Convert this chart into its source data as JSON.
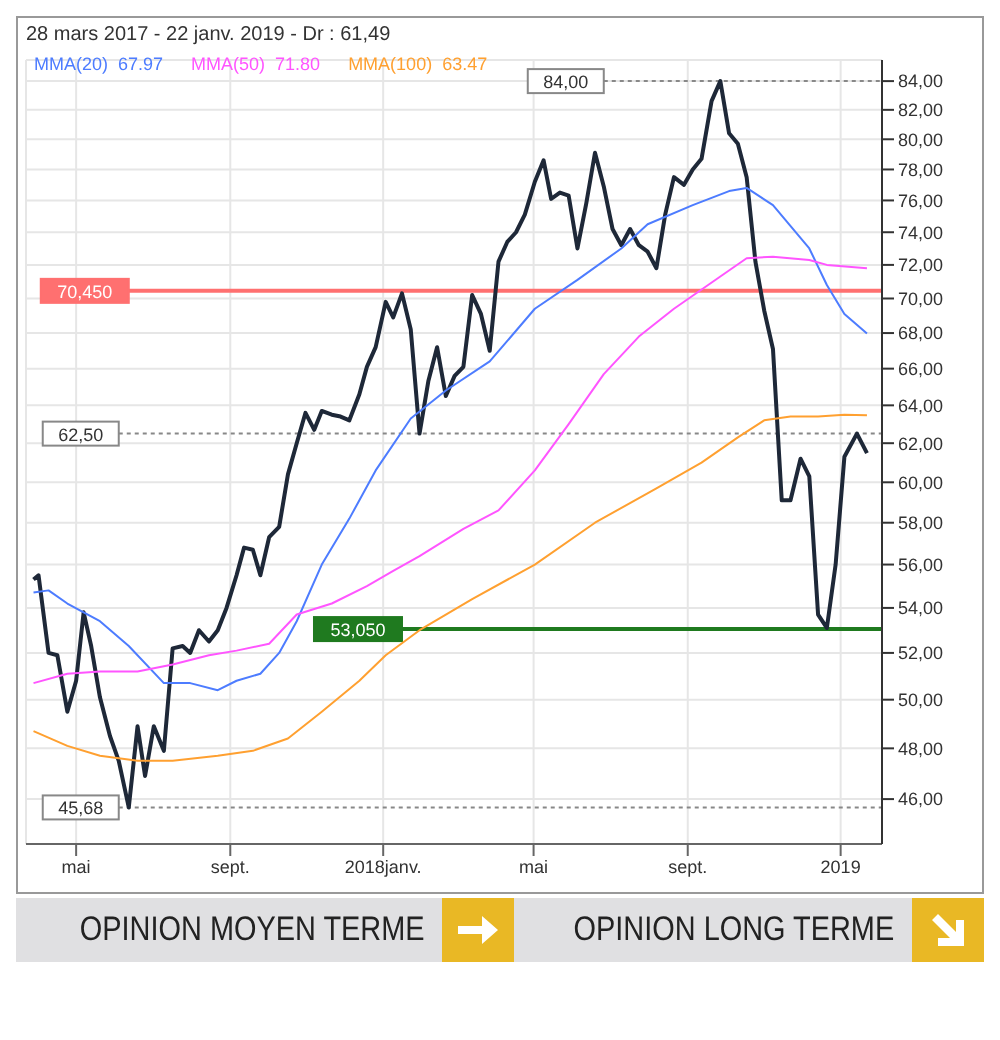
{
  "chart_data": {
    "type": "line",
    "title": "28 mars 2017 - 22 janv. 2019 - Dr : 61,49",
    "log": "y",
    "grid": true,
    "legend": "top left",
    "xlim": [
      "2017-03-22",
      "2019-02-03"
    ],
    "xticks": [
      {
        "value": "2017-05-01",
        "label": "mai"
      },
      {
        "value": "2017-09-01",
        "label": "sept."
      },
      {
        "value": "2018-01-01",
        "label": "2018janv."
      },
      {
        "value": "2018-05-01",
        "label": "mai"
      },
      {
        "value": "2018-09-01",
        "label": "sept."
      },
      {
        "value": "2019-01-01",
        "label": "2019"
      }
    ],
    "ylim": [
      44.3,
      85.5
    ],
    "yticks": [
      {
        "value": 46,
        "label": "46,00"
      },
      {
        "value": 48,
        "label": "48,00"
      },
      {
        "value": 50,
        "label": "50,00"
      },
      {
        "value": 52,
        "label": "52,00"
      },
      {
        "value": 54,
        "label": "54,00"
      },
      {
        "value": 56,
        "label": "56,00"
      },
      {
        "value": 58,
        "label": "58,00"
      },
      {
        "value": 60,
        "label": "60,00"
      },
      {
        "value": 62,
        "label": "62,00"
      },
      {
        "value": 64,
        "label": "64,00"
      },
      {
        "value": 66,
        "label": "66,00"
      },
      {
        "value": 68,
        "label": "68,00"
      },
      {
        "value": 70,
        "label": "70,00"
      },
      {
        "value": 72,
        "label": "72,00"
      },
      {
        "value": 74,
        "label": "74,00"
      },
      {
        "value": 76,
        "label": "76,00"
      },
      {
        "value": 78,
        "label": "78,00"
      },
      {
        "value": 80,
        "label": "80,00"
      },
      {
        "value": 82,
        "label": "82,00"
      },
      {
        "value": 84,
        "label": "84,00"
      }
    ],
    "series": [
      {
        "color": "#1e2838",
        "x": [
          "2017-03-28",
          "2017-04-01",
          "2017-04-09",
          "2017-04-16",
          "2017-04-24",
          "2017-05-01",
          "2017-05-07",
          "2017-05-13",
          "2017-05-20",
          "2017-05-28",
          "2017-06-04",
          "2017-06-12",
          "2017-06-19",
          "2017-06-25",
          "2017-07-02",
          "2017-07-10",
          "2017-07-17",
          "2017-07-25",
          "2017-07-31",
          "2017-08-07",
          "2017-08-15",
          "2017-08-22",
          "2017-08-29",
          "2017-09-06",
          "2017-09-12",
          "2017-09-19",
          "2017-09-25",
          "2017-10-02",
          "2017-10-10",
          "2017-10-17",
          "2017-10-24",
          "2017-10-31",
          "2017-11-07",
          "2017-11-13",
          "2017-11-21",
          "2017-11-28",
          "2017-12-05",
          "2017-12-13",
          "2017-12-19",
          "2017-12-26",
          "2018-01-03",
          "2018-01-09",
          "2018-01-16",
          "2018-01-23",
          "2018-01-30",
          "2018-02-06",
          "2018-02-13",
          "2018-02-20",
          "2018-02-27",
          "2018-03-06",
          "2018-03-13",
          "2018-03-20",
          "2018-03-27",
          "2018-04-03",
          "2018-04-10",
          "2018-04-17",
          "2018-04-24",
          "2018-05-02",
          "2018-05-09",
          "2018-05-15",
          "2018-05-22",
          "2018-05-29",
          "2018-06-05",
          "2018-06-12",
          "2018-06-19",
          "2018-06-26",
          "2018-07-03",
          "2018-07-10",
          "2018-07-17",
          "2018-07-24",
          "2018-07-31",
          "2018-08-07",
          "2018-08-14",
          "2018-08-21",
          "2018-08-29",
          "2018-09-05",
          "2018-09-12",
          "2018-09-20",
          "2018-09-27",
          "2018-10-04",
          "2018-10-11",
          "2018-10-18",
          "2018-10-25",
          "2018-11-01",
          "2018-11-08",
          "2018-11-15",
          "2018-11-22",
          "2018-11-30",
          "2018-12-07",
          "2018-12-14",
          "2018-12-21",
          "2018-12-28",
          "2019-01-04",
          "2019-01-14",
          "2019-01-22"
        ],
        "values": [
          55.3,
          55.5,
          52.0,
          51.9,
          49.5,
          50.8,
          53.8,
          52.3,
          50.1,
          48.5,
          47.5,
          45.68,
          48.9,
          46.9,
          48.9,
          47.9,
          52.2,
          52.3,
          52.0,
          53.0,
          52.5,
          53.0,
          54.0,
          55.5,
          56.8,
          56.7,
          55.5,
          57.3,
          57.8,
          60.4,
          62.0,
          63.6,
          62.7,
          63.7,
          63.5,
          63.4,
          63.2,
          64.6,
          66.1,
          67.2,
          69.8,
          68.9,
          70.3,
          68.2,
          62.5,
          65.3,
          67.2,
          64.5,
          65.6,
          66.1,
          70.2,
          69.1,
          67.0,
          72.2,
          73.4,
          74.0,
          75.1,
          77.2,
          78.6,
          76.1,
          76.5,
          76.3,
          73.0,
          75.8,
          79.1,
          76.9,
          74.2,
          73.2,
          74.2,
          73.2,
          72.8,
          71.8,
          75.1,
          77.5,
          77.0,
          78.0,
          78.7,
          82.6,
          84.0,
          80.4,
          79.7,
          77.5,
          72.2,
          69.3,
          67.1,
          59.1,
          59.1,
          61.2,
          60.3,
          53.7,
          53.1,
          56.0,
          61.3,
          62.5,
          61.49
        ]
      },
      {
        "name": "MMA(20)  67.97",
        "color": "#4d7cff",
        "x": [
          "2017-03-28",
          "2017-04-09",
          "2017-04-24",
          "2017-05-07",
          "2017-05-20",
          "2017-06-12",
          "2017-07-10",
          "2017-07-31",
          "2017-08-22",
          "2017-09-06",
          "2017-09-25",
          "2017-10-10",
          "2017-10-24",
          "2017-11-13",
          "2017-12-05",
          "2017-12-26",
          "2018-01-23",
          "2018-02-20",
          "2018-03-27",
          "2018-05-02",
          "2018-06-05",
          "2018-07-10",
          "2018-07-31",
          "2018-09-05",
          "2018-10-04",
          "2018-10-18",
          "2018-11-08",
          "2018-12-07",
          "2018-12-21",
          "2019-01-04",
          "2019-01-22"
        ],
        "values": [
          54.7,
          54.8,
          54.2,
          53.8,
          53.4,
          52.3,
          50.7,
          50.7,
          50.4,
          50.8,
          51.1,
          52.0,
          53.4,
          56.0,
          58.2,
          60.6,
          63.3,
          64.8,
          66.4,
          69.4,
          71.1,
          73.0,
          74.5,
          75.7,
          76.6,
          76.8,
          75.7,
          73.0,
          70.8,
          69.1,
          67.97
        ]
      },
      {
        "name": "MMA(50)  71.80",
        "color": "#ff55ff",
        "x": [
          "2017-03-28",
          "2017-04-24",
          "2017-05-20",
          "2017-06-19",
          "2017-07-17",
          "2017-08-15",
          "2017-09-06",
          "2017-10-02",
          "2017-10-24",
          "2017-11-21",
          "2017-12-19",
          "2018-01-09",
          "2018-01-30",
          "2018-03-06",
          "2018-04-03",
          "2018-05-02",
          "2018-05-29",
          "2018-06-26",
          "2018-07-24",
          "2018-08-21",
          "2018-09-27",
          "2018-10-18",
          "2018-11-08",
          "2018-12-07",
          "2018-12-21",
          "2019-01-22"
        ],
        "values": [
          50.7,
          51.1,
          51.2,
          51.2,
          51.5,
          51.9,
          52.1,
          52.4,
          53.7,
          54.2,
          55.0,
          55.7,
          56.4,
          57.7,
          58.6,
          60.6,
          63.0,
          65.7,
          67.8,
          69.4,
          71.3,
          72.4,
          72.5,
          72.3,
          72.0,
          71.8
        ]
      },
      {
        "name": "MMA(100)  63.47",
        "color": "#ffa030",
        "x": [
          "2017-03-28",
          "2017-04-24",
          "2017-05-20",
          "2017-06-19",
          "2017-07-17",
          "2017-08-22",
          "2017-09-19",
          "2017-10-17",
          "2017-11-13",
          "2017-12-13",
          "2018-01-03",
          "2018-01-30",
          "2018-03-13",
          "2018-05-02",
          "2018-06-19",
          "2018-08-07",
          "2018-09-12",
          "2018-10-11",
          "2018-11-01",
          "2018-11-22",
          "2018-12-14",
          "2019-01-04",
          "2019-01-22"
        ],
        "values": [
          48.7,
          48.1,
          47.7,
          47.5,
          47.5,
          47.7,
          47.9,
          48.4,
          49.5,
          50.8,
          51.9,
          53.0,
          54.4,
          56.0,
          58.0,
          59.7,
          61.0,
          62.3,
          63.2,
          63.4,
          63.4,
          63.5,
          63.47
        ]
      }
    ],
    "ref_lines": [
      {
        "axis": "y",
        "value": 84.0,
        "label": "84,00",
        "color": "#888888",
        "line_style": "dotted"
      },
      {
        "axis": "y",
        "value": 70.45,
        "label": "70,450",
        "color": "#ff7070",
        "line_style": "solid"
      },
      {
        "axis": "y",
        "value": 62.5,
        "label": "62,50",
        "color": "#888888",
        "line_style": "dotted"
      },
      {
        "axis": "y",
        "value": 53.05,
        "label": "53,050",
        "color": "#1f7a1f",
        "line_style": "solid"
      },
      {
        "axis": "y",
        "value": 45.68,
        "label": "45,68",
        "color": "#888888",
        "line_style": "dotted"
      }
    ],
    "annotations": [
      "OPINION MOYEN TERME",
      "OPINION LONG TERME"
    ]
  }
}
